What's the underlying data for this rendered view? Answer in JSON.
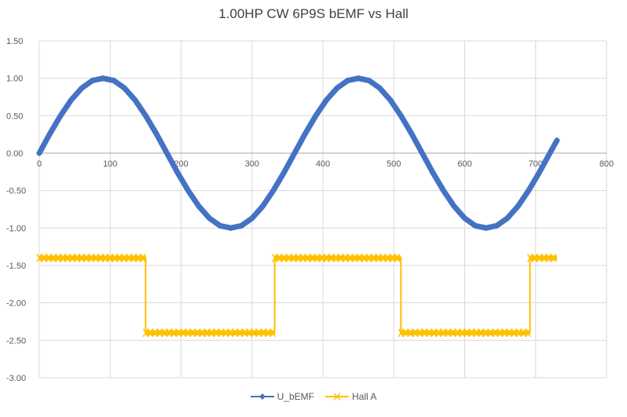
{
  "chart_data": {
    "type": "scatter",
    "title": "1.00HP CW 6P9S bEMF vs Hall",
    "xlabel": "",
    "ylabel": "",
    "xlim": [
      0,
      800
    ],
    "ylim": [
      -3.0,
      1.5
    ],
    "x_ticks": [
      "0",
      "100",
      "200",
      "300",
      "400",
      "500",
      "600",
      "700",
      "800"
    ],
    "y_ticks": [
      "1.50",
      "1.00",
      "0.50",
      "0.00",
      "-0.50",
      "-1.00",
      "-1.50",
      "-2.00",
      "-2.50",
      "-3.00"
    ],
    "grid": true,
    "legend_position": "bottom",
    "series": [
      {
        "name": "U_bEMF",
        "color": "#4472C4",
        "marker": "diamond",
        "x": [
          0,
          15,
          30,
          45,
          60,
          75,
          90,
          105,
          120,
          135,
          150,
          165,
          180,
          195,
          210,
          225,
          240,
          255,
          270,
          285,
          300,
          315,
          330,
          345,
          360,
          375,
          390,
          405,
          420,
          435,
          450,
          465,
          480,
          495,
          510,
          525,
          540,
          555,
          570,
          585,
          600,
          615,
          630,
          645,
          660,
          675,
          690,
          705,
          720,
          730
        ],
        "y": [
          0.0,
          0.26,
          0.5,
          0.71,
          0.87,
          0.97,
          1.0,
          0.97,
          0.87,
          0.71,
          0.5,
          0.26,
          0.0,
          -0.26,
          -0.5,
          -0.71,
          -0.87,
          -0.97,
          -1.0,
          -0.97,
          -0.87,
          -0.71,
          -0.5,
          -0.26,
          0.0,
          0.26,
          0.5,
          0.71,
          0.87,
          0.97,
          1.0,
          0.97,
          0.87,
          0.71,
          0.5,
          0.26,
          0.0,
          -0.26,
          -0.5,
          -0.71,
          -0.87,
          -0.97,
          -1.0,
          -0.97,
          -0.87,
          -0.71,
          -0.5,
          -0.26,
          0.0,
          0.17
        ]
      },
      {
        "name": "Hall A",
        "color": "#FFC000",
        "marker": "x",
        "x": [
          0,
          150,
          150,
          332,
          332,
          510,
          510,
          692,
          692,
          730
        ],
        "y": [
          -1.4,
          -1.4,
          -2.4,
          -2.4,
          -1.4,
          -1.4,
          -2.4,
          -2.4,
          -1.4,
          -1.4
        ]
      }
    ]
  }
}
